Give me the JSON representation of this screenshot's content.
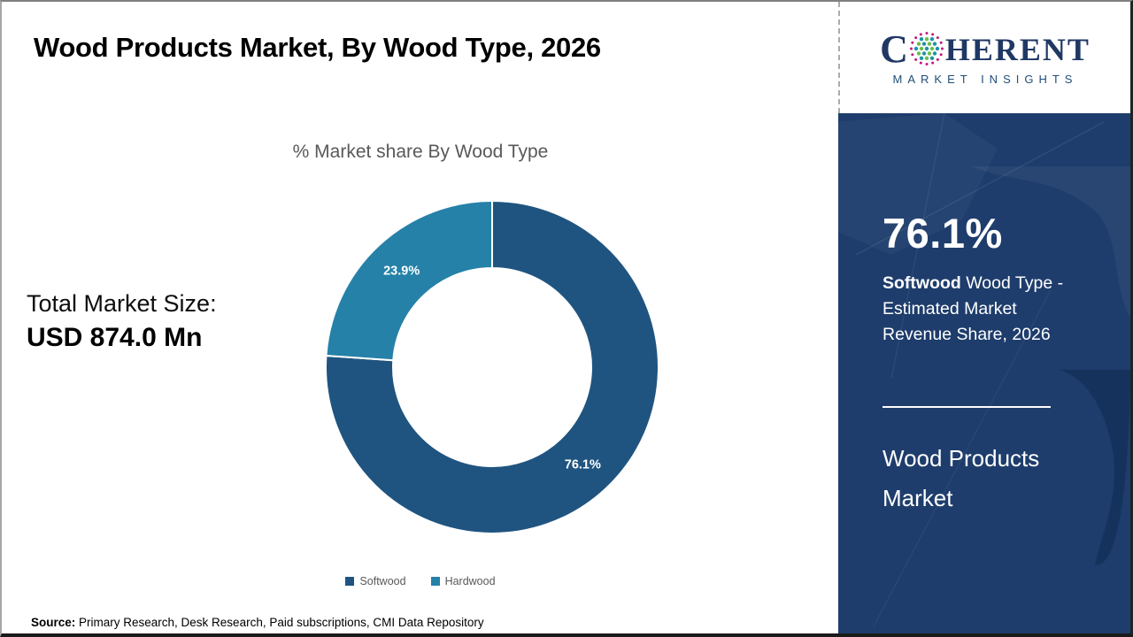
{
  "header": {
    "title": "Wood Products Market, By Wood Type, 2026"
  },
  "logo": {
    "letter_c": "C",
    "letters_rest": "HERENT",
    "tagline": "MARKET INSIGHTS",
    "brand_color": "#1F3864",
    "globe_dot_colors": {
      "outer": "#C5157D",
      "teal": "#1E93A8",
      "green": "#69BE4A"
    }
  },
  "main": {
    "chart_title": "% Market share By Wood Type",
    "total_label": "Total Market Size:",
    "total_value": "USD 874.0 Mn",
    "source_label": "Source:",
    "source_text": " Primary Research, Desk Research, Paid subscriptions, CMI Data Repository"
  },
  "chart_data": {
    "type": "pie",
    "donut": true,
    "title": "% Market share By Wood Type",
    "categories": [
      "Softwood",
      "Hardwood"
    ],
    "values": [
      76.1,
      23.9
    ],
    "labels": [
      "76.1%",
      "23.9%"
    ],
    "colors": [
      "#1F5480",
      "#2581A8"
    ],
    "start_angle_deg": 0,
    "outer_radius": 188,
    "inner_radius": 112,
    "label_radius": 150,
    "legend_position": "bottom"
  },
  "sidebar": {
    "bg_color": "#1E3D6C",
    "stat_value": "76.1%",
    "stat_line1_bold": "Softwood",
    "stat_line1_rest": " Wood Type -",
    "stat_line2": "Estimated Market",
    "stat_line3": "Revenue Share, 2026",
    "panel_title_line1": "Wood Products",
    "panel_title_line2": "Market"
  }
}
